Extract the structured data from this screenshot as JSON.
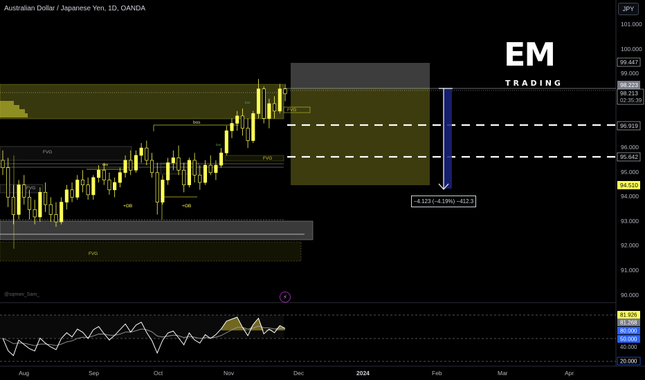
{
  "header": {
    "title": "Australian Dollar / Japanese Yen, 1D, OANDA",
    "currency_button": "JPY"
  },
  "logo": {
    "main": "EM",
    "sub": "TRADING"
  },
  "watermark": "@sqmwv_Sam_",
  "indicator_icon": "lightning-icon",
  "measure_label": "−4.123 (−4.19%) −412.3",
  "colors": {
    "background": "#000000",
    "candle_fill": "#ffff57",
    "zone_fill": "#c8c832",
    "grey_zone": "#707070",
    "rsi_fill": "#c8b432",
    "blue_label": "#2962ff",
    "target_bar": "#1a237e"
  },
  "chart_data": {
    "type": "candlestick",
    "symbol": "Australian Dollar / Japanese Yen",
    "interval": "1D",
    "x_tick_labels": [
      "Aug",
      "Sep",
      "Oct",
      "Nov",
      "Dec",
      "2024",
      "Feb",
      "Mar",
      "Apr"
    ],
    "y_tick_labels": [
      "101.000",
      "100.000",
      "99.000",
      "98.000",
      "96.000",
      "95.000",
      "94.000",
      "93.000",
      "92.000",
      "91.000",
      "90.000"
    ],
    "y_range": [
      89.9,
      101.5
    ],
    "price_labels": [
      {
        "value": "99.447",
        "style": "outline"
      },
      {
        "value": "98.223",
        "style": "grey"
      },
      {
        "value": "98.213",
        "style": "current"
      },
      {
        "value": "02:35:39",
        "style": "countdown"
      },
      {
        "value": "96.919",
        "style": "outline"
      },
      {
        "value": "95.642",
        "style": "outline"
      },
      {
        "value": "94.510",
        "style": "yellow"
      }
    ],
    "annotations": [
      "FVG",
      "FVG",
      "FVG",
      "FVG",
      "FVG",
      "bos",
      "+OB",
      "+OB",
      "ees",
      "bos",
      "bos"
    ],
    "levels": [
      {
        "name": "target-1",
        "value": 96.919
      },
      {
        "name": "target-2",
        "value": 95.642
      }
    ],
    "measure": {
      "from": 98.213,
      "to": 94.09,
      "change": -4.123,
      "percent": -4.19
    },
    "candles_ohlc_approx": [
      [
        95.5,
        95.9,
        94.9,
        95.2
      ],
      [
        95.2,
        95.6,
        93.6,
        94.0
      ],
      [
        94.0,
        94.5,
        92.9,
        93.3
      ],
      [
        93.3,
        94.7,
        93.1,
        94.5
      ],
      [
        94.5,
        94.9,
        93.7,
        94.0
      ],
      [
        94.0,
        94.3,
        93.1,
        93.5
      ],
      [
        93.5,
        93.9,
        92.9,
        93.2
      ],
      [
        93.2,
        94.4,
        93.0,
        94.2
      ],
      [
        94.2,
        94.6,
        93.4,
        93.7
      ],
      [
        93.7,
        94.0,
        93.0,
        93.3
      ],
      [
        93.3,
        93.8,
        92.8,
        93.0
      ],
      [
        93.0,
        94.0,
        92.9,
        93.8
      ],
      [
        93.8,
        94.5,
        93.5,
        94.3
      ],
      [
        94.3,
        94.6,
        93.8,
        94.0
      ],
      [
        94.0,
        94.9,
        93.9,
        94.7
      ],
      [
        94.7,
        95.1,
        94.2,
        94.5
      ],
      [
        94.5,
        94.8,
        93.9,
        94.1
      ],
      [
        94.1,
        94.9,
        93.9,
        94.8
      ],
      [
        94.8,
        95.3,
        94.6,
        95.1
      ],
      [
        95.1,
        95.4,
        94.5,
        94.7
      ],
      [
        94.7,
        95.0,
        94.1,
        94.3
      ],
      [
        94.3,
        94.8,
        94.0,
        94.6
      ],
      [
        94.6,
        95.2,
        94.4,
        95.0
      ],
      [
        95.0,
        95.7,
        94.8,
        95.5
      ],
      [
        95.5,
        95.9,
        94.9,
        95.1
      ],
      [
        95.1,
        95.9,
        95.0,
        95.7
      ],
      [
        95.7,
        96.2,
        95.4,
        96.0
      ],
      [
        96.0,
        96.3,
        95.3,
        95.5
      ],
      [
        95.5,
        95.8,
        94.8,
        95.0
      ],
      [
        95.0,
        95.4,
        93.3,
        93.8
      ],
      [
        93.8,
        94.9,
        93.7,
        94.7
      ],
      [
        94.7,
        95.6,
        94.5,
        95.4
      ],
      [
        95.4,
        95.9,
        95.1,
        95.6
      ],
      [
        95.6,
        96.1,
        94.9,
        95.1
      ],
      [
        95.1,
        95.4,
        94.2,
        94.5
      ],
      [
        94.5,
        95.6,
        94.4,
        95.5
      ],
      [
        95.5,
        95.8,
        94.6,
        94.9
      ],
      [
        94.9,
        95.3,
        94.3,
        94.6
      ],
      [
        94.6,
        95.5,
        94.5,
        95.3
      ],
      [
        95.3,
        95.7,
        94.9,
        95.0
      ],
      [
        95.0,
        95.5,
        94.7,
        95.3
      ],
      [
        95.3,
        96.0,
        95.2,
        95.8
      ],
      [
        95.8,
        96.9,
        95.7,
        96.7
      ],
      [
        96.7,
        97.2,
        96.4,
        97.0
      ],
      [
        97.0,
        97.5,
        96.7,
        97.3
      ],
      [
        97.3,
        97.6,
        96.5,
        96.8
      ],
      [
        96.8,
        97.2,
        96.0,
        96.3
      ],
      [
        96.3,
        97.5,
        96.2,
        97.4
      ],
      [
        97.4,
        98.8,
        97.2,
        98.4
      ],
      [
        98.4,
        98.5,
        97.0,
        97.2
      ],
      [
        97.2,
        98.0,
        96.8,
        97.8
      ],
      [
        97.8,
        98.1,
        97.2,
        97.5
      ],
      [
        97.5,
        98.6,
        97.4,
        98.4
      ],
      [
        98.4,
        98.6,
        97.9,
        98.2
      ]
    ],
    "rsi": {
      "y_tick_labels": [
        "81.926",
        "81.268",
        "80.000",
        "50.000",
        "40.000",
        "20.000"
      ],
      "last": 81.926,
      "signal": 81.268
    }
  }
}
